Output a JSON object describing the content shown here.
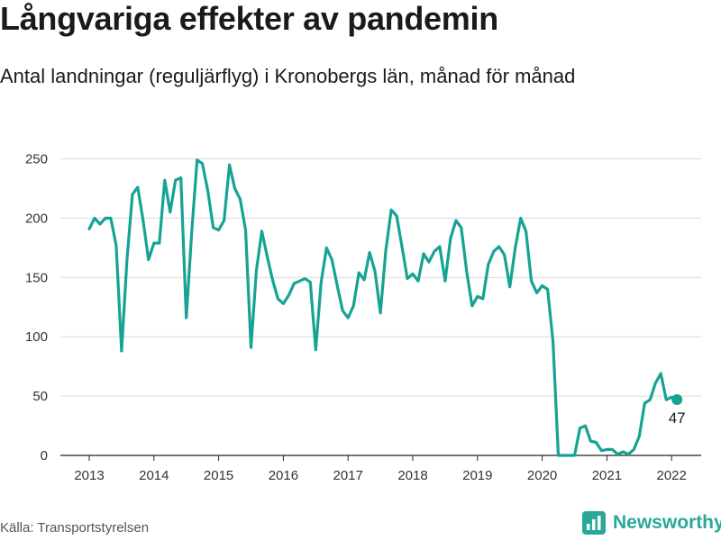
{
  "title": "Långvariga effekter av pandemin",
  "subtitle": "Antal landningar (reguljärflyg) i Kronobergs län, månad för månad",
  "source": "Källa: Transportstyrelsen",
  "brand": {
    "name": "Newsworthy",
    "icon": "bar-chart-logo-icon",
    "color": "#2aa89a"
  },
  "chart_data": {
    "type": "line",
    "title": "",
    "xlabel": "",
    "ylabel": "",
    "x_ticks": [
      "2013",
      "2014",
      "2015",
      "2016",
      "2017",
      "2018",
      "2019",
      "2020",
      "2021",
      "2022"
    ],
    "y_ticks": [
      "0",
      "50",
      "100",
      "150",
      "200",
      "250"
    ],
    "ylim": [
      0,
      255
    ],
    "grid": "horizontal",
    "line_color": "#16a394",
    "start": {
      "year": 2013,
      "month": 1
    },
    "series": [
      {
        "values": [
          191,
          200,
          195,
          200,
          200,
          177,
          88,
          165,
          220,
          226,
          198,
          165,
          179,
          179,
          232,
          205,
          232,
          234,
          116,
          188,
          249,
          246,
          223,
          192,
          190,
          198,
          245,
          225,
          216,
          190,
          91,
          156,
          189,
          168,
          148,
          132,
          128,
          135,
          145,
          147,
          149,
          146,
          89,
          146,
          175,
          165,
          143,
          122,
          116,
          126,
          154,
          148,
          171,
          155,
          120,
          173,
          207,
          202,
          176,
          149,
          153,
          147,
          170,
          163,
          172,
          176,
          147,
          183,
          198,
          192,
          155,
          126,
          134,
          132,
          161,
          172,
          176,
          169,
          142,
          175,
          200,
          189,
          147,
          137,
          143,
          140,
          96,
          0,
          0,
          0,
          0,
          23,
          25,
          12,
          11,
          4,
          5,
          5,
          1,
          3,
          1,
          5,
          16,
          44,
          47,
          61,
          69,
          47,
          49,
          47
        ]
      }
    ],
    "end_label": "47"
  }
}
